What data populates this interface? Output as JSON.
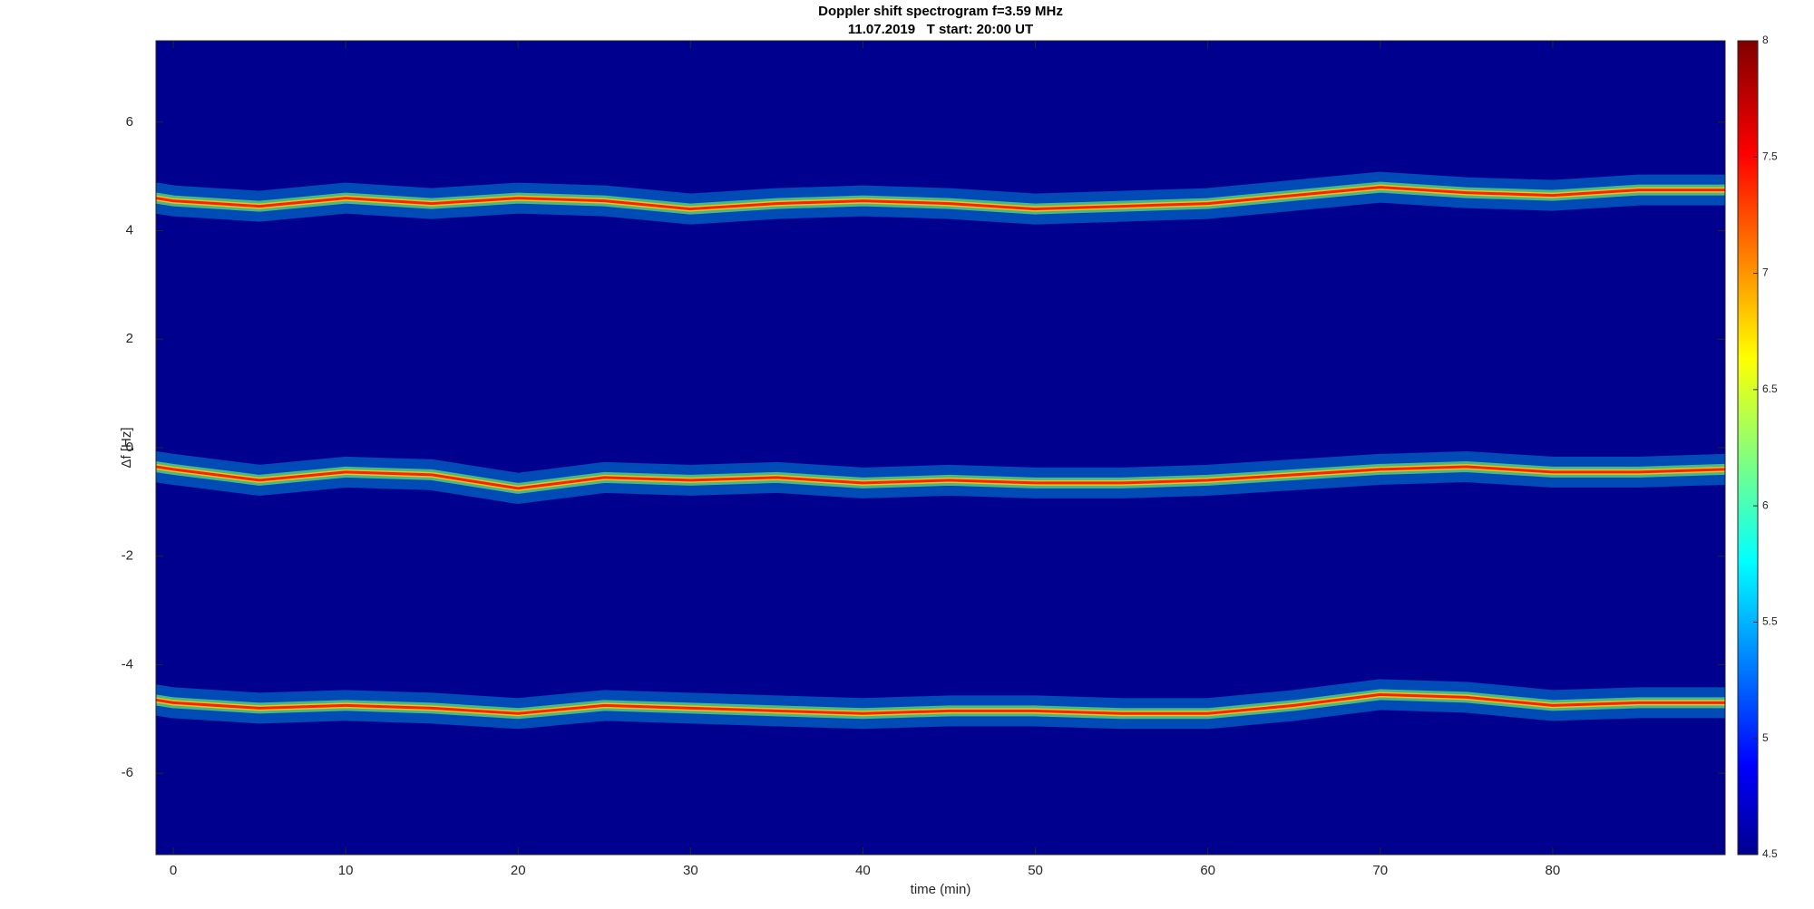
{
  "chart_data": {
    "type": "spectrogram",
    "title": "Doppler shift spectrogram f=3.59 MHz",
    "subtitle": "11.07.2019   T start: 20:00 UT",
    "x_label": "time (min)",
    "y_label": "Δf [Hz]",
    "colormap": "jet",
    "background_level": 4.5,
    "x": [
      -1,
      0,
      5,
      10,
      15,
      20,
      25,
      30,
      35,
      40,
      45,
      50,
      55,
      60,
      65,
      70,
      75,
      80,
      85,
      90
    ],
    "series": [
      {
        "color": "#ff2000",
        "values": [
          4.6,
          4.55,
          4.45,
          4.6,
          4.5,
          4.6,
          4.55,
          4.4,
          4.5,
          4.55,
          4.5,
          4.4,
          4.45,
          4.5,
          4.65,
          4.8,
          4.7,
          4.65,
          4.75,
          4.75
        ]
      },
      {
        "color": "#ff2000",
        "values": [
          -0.35,
          -0.4,
          -0.6,
          -0.45,
          -0.5,
          -0.75,
          -0.55,
          -0.6,
          -0.55,
          -0.65,
          -0.6,
          -0.65,
          -0.65,
          -0.6,
          -0.5,
          -0.4,
          -0.35,
          -0.45,
          -0.45,
          -0.4
        ]
      },
      {
        "color": "#ff2000",
        "values": [
          -4.65,
          -4.7,
          -4.8,
          -4.75,
          -4.8,
          -4.9,
          -4.75,
          -4.8,
          -4.85,
          -4.9,
          -4.85,
          -4.85,
          -4.9,
          -4.9,
          -4.75,
          -4.55,
          -4.6,
          -4.75,
          -4.7,
          -4.7
        ]
      }
    ],
    "xlim": [
      -1,
      90
    ],
    "xticks": [
      0,
      10,
      20,
      30,
      40,
      50,
      60,
      70,
      80
    ],
    "ylim": [
      -7.5,
      7.5
    ],
    "yticks": [
      -6,
      -4,
      -2,
      0,
      2,
      4,
      6
    ],
    "clim": [
      4.5,
      8
    ],
    "cticks": [
      4.5,
      5,
      5.5,
      6,
      6.5,
      7,
      7.5,
      8
    ]
  }
}
